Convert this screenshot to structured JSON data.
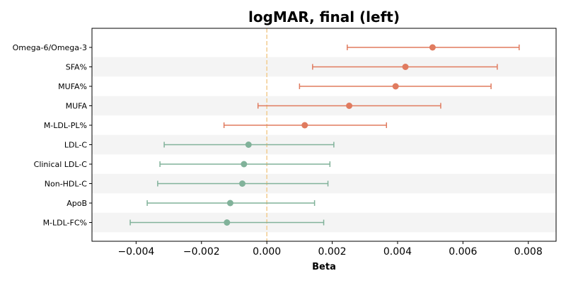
{
  "chart_data": {
    "type": "forest",
    "title": "logMAR, final (left)",
    "xlabel": "Beta",
    "ylabel": "",
    "xlim": [
      -0.00535,
      0.00885
    ],
    "xticks": [
      -0.004,
      -0.002,
      0.0,
      0.002,
      0.004,
      0.006,
      0.008
    ],
    "xtick_labels": [
      "−0.004",
      "−0.002",
      "0.000",
      "0.002",
      "0.004",
      "0.006",
      "0.008"
    ],
    "reference_line": 0.0,
    "grid": false,
    "colors": {
      "positive": "#E07B5F",
      "negative": "#81B29A",
      "reference": "#F2CC8F",
      "band": "#F4F4F4"
    },
    "categories": [
      "Omega-6/Omega-3",
      "SFA%",
      "MUFA%",
      "MUFA",
      "M-LDL-PL%",
      "LDL-C",
      "Clinical LDL-C",
      "Non-HDL-C",
      "ApoB",
      "M-LDL-FC%"
    ],
    "estimates": [
      0.00507,
      0.00424,
      0.00394,
      0.00252,
      0.00116,
      -0.00056,
      -0.0007,
      -0.00075,
      -0.00112,
      -0.00122
    ],
    "ci_lower": [
      0.00246,
      0.0014,
      0.001,
      -0.00027,
      -0.00131,
      -0.00314,
      -0.00327,
      -0.00334,
      -0.00366,
      -0.00418
    ],
    "ci_upper": [
      0.00772,
      0.00705,
      0.00686,
      0.00532,
      0.00366,
      0.00205,
      0.00193,
      0.00187,
      0.00146,
      0.00174
    ]
  }
}
